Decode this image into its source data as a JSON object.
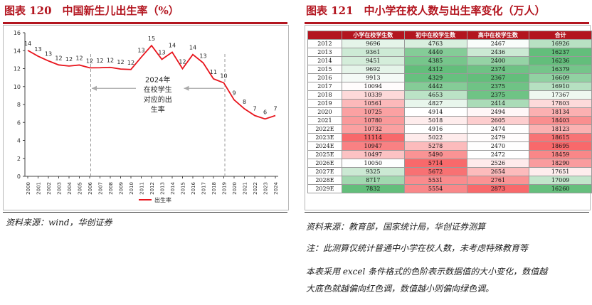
{
  "left_panel": {
    "title": "图表 120　中国新生儿出生率（%）",
    "source": "资料来源：wind，华创证券"
  },
  "right_panel": {
    "title": "图表 121　中小学在校人数与出生率变化（万人）",
    "source": "资料来源：教育部，国家统计局，华创证券测算",
    "notes": [
      "注：此测算仅统计普通中小学在校人数，未考虑特殊教育等",
      "本表采用 excel 条件格式的色阶表示数据值的大小变化，数值越",
      "大底色就越偏向红色调，数值越小则偏向绿色调。"
    ]
  },
  "chart_data": [
    {
      "type": "line",
      "title": "",
      "xlabel": "",
      "ylabel": "",
      "ylim": [
        0,
        16
      ],
      "yticks": [
        0,
        2,
        4,
        6,
        8,
        10,
        12,
        14,
        16
      ],
      "x": [
        "2000",
        "2001",
        "2002",
        "2003",
        "2004",
        "2005",
        "2006",
        "2007",
        "2008",
        "2009",
        "2010",
        "2011",
        "2012",
        "2013",
        "2014",
        "2015",
        "2016",
        "2017",
        "2018",
        "2019",
        "2020",
        "2021",
        "2022",
        "2023",
        "2024"
      ],
      "series": [
        {
          "name": "出生率",
          "color": "#e8141c",
          "values": [
            14.03,
            13.38,
            12.86,
            12.41,
            12.29,
            12.4,
            12.09,
            12.1,
            12.14,
            11.95,
            11.9,
            13.27,
            14.57,
            13.03,
            13.83,
            11.99,
            13.57,
            12.64,
            10.86,
            10.41,
            8.52,
            7.52,
            6.77,
            6.39,
            6.77
          ],
          "labels": [
            "14",
            "13",
            "13",
            "12",
            "12",
            "12",
            "12",
            "12",
            "12",
            "12",
            "12",
            "13",
            "15",
            "13",
            "14",
            "12",
            "14",
            "13",
            "11",
            "10",
            "9",
            "8",
            "7",
            "6",
            "7"
          ]
        }
      ],
      "dashed_x": [
        "2006",
        "2019"
      ],
      "annotation": "2024年在校学生对应的出生率",
      "legend": "bottom-center",
      "grid": false
    },
    {
      "type": "table",
      "columns": [
        "",
        "小学在校学生数",
        "初中在校学生数",
        "高中在校学生数",
        "合计"
      ],
      "rows": [
        [
          "2012",
          9696,
          4763,
          2467,
          16926
        ],
        [
          "2013",
          9361,
          4440,
          2436,
          16237
        ],
        [
          "2014",
          9451,
          4385,
          2400,
          16236
        ],
        [
          "2015",
          9692,
          4312,
          2374,
          16379
        ],
        [
          "2016",
          9913,
          4329,
          2367,
          16609
        ],
        [
          "2017",
          10094,
          4442,
          2375,
          16910
        ],
        [
          "2018",
          10339,
          4653,
          2375,
          17367
        ],
        [
          "2019",
          10561,
          4827,
          2414,
          17803
        ],
        [
          "2020",
          10725,
          4914,
          2494,
          18134
        ],
        [
          "2021",
          10780,
          5018,
          2605,
          18403
        ],
        [
          "2022E",
          10732,
          4916,
          2474,
          18123
        ],
        [
          "2023E",
          11114,
          5022,
          2479,
          18615
        ],
        [
          "2024E",
          10947,
          5278,
          2470,
          18695
        ],
        [
          "2025E",
          10497,
          5490,
          2472,
          18459
        ],
        [
          "2026E",
          10050,
          5714,
          2526,
          18290
        ],
        [
          "2027E",
          9325,
          5672,
          2654,
          17651
        ],
        [
          "2028E",
          8717,
          5531,
          2761,
          17009
        ],
        [
          "2029E",
          7832,
          5554,
          2873,
          16260
        ]
      ],
      "colorscale": {
        "low": "#63be7b",
        "mid": "#ffffff",
        "high": "#f8696b"
      }
    }
  ]
}
